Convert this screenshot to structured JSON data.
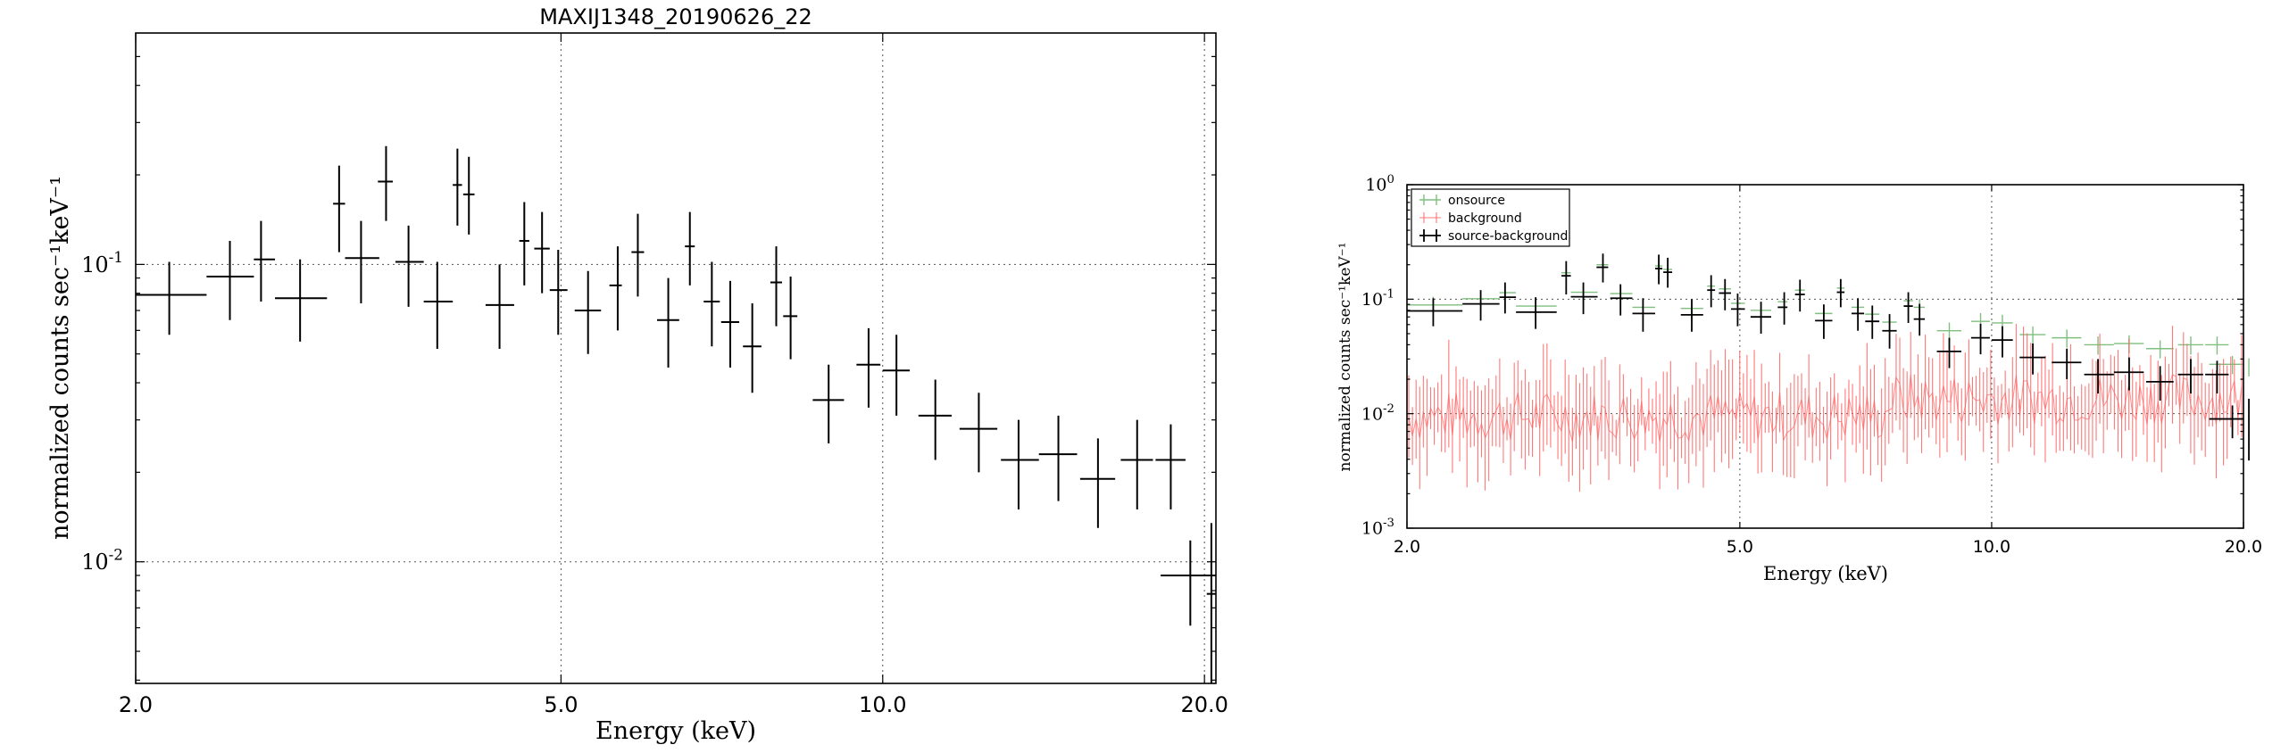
{
  "chart_data": [
    {
      "type": "scatter",
      "title": "MAXIJ1348_20190626_22",
      "xlabel": "Energy (keV)",
      "ylabel": "normalized counts sec⁻¹keV⁻¹",
      "xscale": "log",
      "yscale": "log",
      "xlim": [
        2.0,
        20.5
      ],
      "ylim": [
        0.0039,
        0.6
      ],
      "xticks": [
        "2.0",
        "5.0",
        "10.0",
        "20.0"
      ],
      "yticks": [
        {
          "mant": "10",
          "exp": "-1"
        },
        {
          "mant": "10",
          "exp": "-2"
        }
      ],
      "grid": true,
      "series": [
        {
          "color": "#000000",
          "points": [
            [
              2.15,
              0.079,
              2.0,
              2.33,
              0.058,
              0.102
            ],
            [
              2.45,
              0.091,
              2.33,
              2.58,
              0.065,
              0.12
            ],
            [
              2.62,
              0.104,
              2.58,
              2.7,
              0.075,
              0.14
            ],
            [
              2.85,
              0.077,
              2.7,
              3.02,
              0.055,
              0.104
            ],
            [
              3.1,
              0.16,
              3.06,
              3.14,
              0.11,
              0.215
            ],
            [
              3.25,
              0.105,
              3.14,
              3.38,
              0.074,
              0.14
            ],
            [
              3.43,
              0.19,
              3.37,
              3.48,
              0.14,
              0.25
            ],
            [
              3.6,
              0.102,
              3.5,
              3.72,
              0.072,
              0.135
            ],
            [
              3.83,
              0.075,
              3.72,
              3.96,
              0.052,
              0.102
            ],
            [
              4.0,
              0.185,
              3.96,
              4.04,
              0.135,
              0.245
            ],
            [
              4.1,
              0.172,
              4.05,
              4.15,
              0.126,
              0.23
            ],
            [
              4.38,
              0.073,
              4.25,
              4.52,
              0.052,
              0.1
            ],
            [
              4.62,
              0.12,
              4.57,
              4.67,
              0.085,
              0.162
            ],
            [
              4.8,
              0.113,
              4.72,
              4.88,
              0.08,
              0.15
            ],
            [
              4.97,
              0.082,
              4.88,
              5.07,
              0.058,
              0.112
            ],
            [
              5.3,
              0.07,
              5.15,
              5.45,
              0.05,
              0.095
            ],
            [
              5.65,
              0.085,
              5.55,
              5.7,
              0.06,
              0.115
            ],
            [
              5.9,
              0.11,
              5.82,
              5.98,
              0.078,
              0.148
            ],
            [
              6.3,
              0.065,
              6.15,
              6.45,
              0.045,
              0.09
            ],
            [
              6.6,
              0.115,
              6.53,
              6.67,
              0.085,
              0.15
            ],
            [
              6.92,
              0.075,
              6.8,
              7.04,
              0.053,
              0.102
            ],
            [
              7.2,
              0.064,
              7.06,
              7.34,
              0.045,
              0.088
            ],
            [
              7.55,
              0.053,
              7.4,
              7.7,
              0.037,
              0.074
            ],
            [
              7.95,
              0.087,
              7.85,
              8.05,
              0.062,
              0.115
            ],
            [
              8.2,
              0.067,
              8.07,
              8.32,
              0.048,
              0.091
            ],
            [
              8.9,
              0.035,
              8.6,
              9.2,
              0.025,
              0.046
            ],
            [
              9.7,
              0.046,
              9.45,
              9.95,
              0.033,
              0.061
            ],
            [
              10.3,
              0.044,
              10.0,
              10.6,
              0.031,
              0.058
            ],
            [
              11.2,
              0.031,
              10.8,
              11.6,
              0.022,
              0.041
            ],
            [
              12.3,
              0.028,
              11.8,
              12.8,
              0.02,
              0.037
            ],
            [
              13.4,
              0.022,
              12.9,
              14.0,
              0.015,
              0.03
            ],
            [
              14.6,
              0.023,
              14.0,
              15.2,
              0.016,
              0.031
            ],
            [
              15.9,
              0.019,
              15.3,
              16.5,
              0.013,
              0.026
            ],
            [
              17.3,
              0.022,
              16.7,
              17.9,
              0.015,
              0.03
            ],
            [
              18.6,
              0.022,
              18.0,
              19.2,
              0.015,
              0.029
            ],
            [
              19.4,
              0.009,
              18.2,
              20.5,
              0.0061,
              0.0118
            ],
            [
              20.3,
              0.0078,
              20.1,
              20.5,
              0.0039,
              0.0135
            ]
          ]
        }
      ]
    },
    {
      "type": "scatter",
      "xlabel": "Energy (keV)",
      "ylabel": "normalized counts sec⁻¹keV⁻¹",
      "xscale": "log",
      "yscale": "log",
      "xlim": [
        2.0,
        20.0
      ],
      "ylim": [
        0.001,
        1.0
      ],
      "xticks": [
        "2.0",
        "5.0",
        "10.0",
        "20.0"
      ],
      "yticks": [
        {
          "mant": "10",
          "exp": "0"
        },
        {
          "mant": "10",
          "exp": "-1"
        },
        {
          "mant": "10",
          "exp": "-2"
        },
        {
          "mant": "10",
          "exp": "-3"
        }
      ],
      "grid": true,
      "legend_position": "top-left",
      "legend": [
        "onsource",
        "background",
        "source-background"
      ],
      "colors": {
        "onsource": "#7fbf7f",
        "background": "#ff6060",
        "source-background": "#000000"
      }
    }
  ]
}
